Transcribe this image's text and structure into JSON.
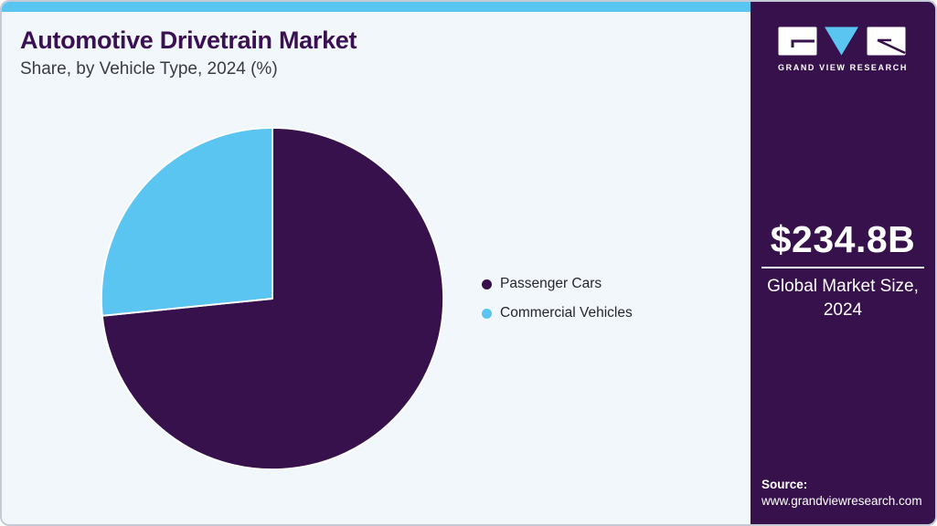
{
  "header": {
    "title": "Automotive Drivetrain Market",
    "subtitle": "Share, by Vehicle Type, 2024 (%)"
  },
  "chart_data": {
    "type": "pie",
    "title": "Automotive Drivetrain Market Share, by Vehicle Type, 2024 (%)",
    "categories": [
      "Passenger Cars",
      "Commercial Vehicles"
    ],
    "values": [
      73.4,
      26.6
    ],
    "unit": "%",
    "colors": [
      "#36114b",
      "#5bc5f2"
    ],
    "start_angle": "12 o'clock",
    "direction": "clockwise",
    "slice_border_color": "#ffffff",
    "legend_position": "right",
    "data_labels_shown": false
  },
  "legend": {
    "items": [
      {
        "label": "Passenger Cars",
        "color": "#36114b"
      },
      {
        "label": "Commercial Vehicles",
        "color": "#5bc5f2"
      }
    ]
  },
  "sidebar": {
    "brand": "GRAND VIEW RESEARCH",
    "market_size": "$234.8B",
    "market_size_caption": "Global Market Size, 2024",
    "source_label": "Source:",
    "source_url": "www.grandviewresearch.com"
  },
  "theme": {
    "accent_blue": "#5bc5f2",
    "accent_purple": "#36114b",
    "page_background": "#f1f7fb",
    "frame_border": "#c5cbd4",
    "title_color": "#3a1053"
  }
}
